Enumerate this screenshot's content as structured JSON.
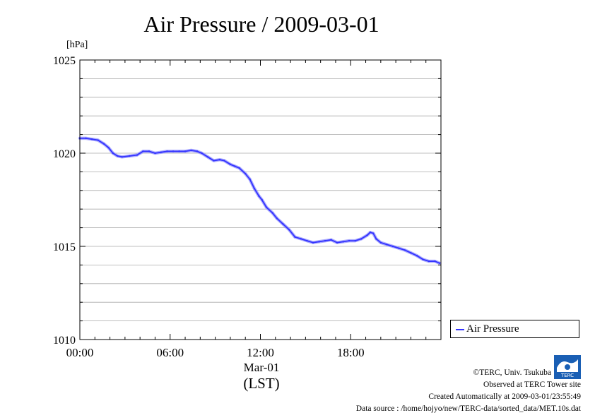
{
  "chart_data": {
    "type": "line",
    "title": "Air Pressure / 2009-03-01",
    "ylabel": "[hPa]",
    "xlabel": "Mar-01",
    "xlabel2": "(LST)",
    "ylim": [
      1010,
      1025
    ],
    "xlim": [
      0,
      24
    ],
    "yticks": [
      1010,
      1015,
      1020,
      1025
    ],
    "xticks": [
      0,
      6,
      12,
      18
    ],
    "xtick_labels": [
      "00:00",
      "06:00",
      "12:00",
      "18:00"
    ],
    "grid": true,
    "legend_position": "bottom-right",
    "series": [
      {
        "name": "Air Pressure",
        "color": "#3333ff",
        "x": [
          0.0,
          0.4,
          0.8,
          1.2,
          1.6,
          1.9,
          2.2,
          2.5,
          2.8,
          3.3,
          3.8,
          4.2,
          4.6,
          5.0,
          5.4,
          5.8,
          6.2,
          6.6,
          7.0,
          7.4,
          7.8,
          8.1,
          8.5,
          8.9,
          9.3,
          9.6,
          10.0,
          10.3,
          10.6,
          11.0,
          11.3,
          11.6,
          11.9,
          12.1,
          12.4,
          12.8,
          13.1,
          13.5,
          13.9,
          14.3,
          14.7,
          15.1,
          15.5,
          15.9,
          16.3,
          16.7,
          17.1,
          17.5,
          17.9,
          18.3,
          18.7,
          19.1,
          19.3,
          19.5,
          19.7,
          20.0,
          20.4,
          20.8,
          21.2,
          21.6,
          22.0,
          22.4,
          22.8,
          23.2,
          23.6,
          23.9
        ],
        "y": [
          1020.8,
          1020.8,
          1020.75,
          1020.7,
          1020.5,
          1020.3,
          1020.0,
          1019.85,
          1019.8,
          1019.85,
          1019.9,
          1020.1,
          1020.1,
          1020.0,
          1020.05,
          1020.1,
          1020.1,
          1020.1,
          1020.1,
          1020.15,
          1020.1,
          1020.0,
          1019.8,
          1019.6,
          1019.65,
          1019.6,
          1019.4,
          1019.3,
          1019.2,
          1018.9,
          1018.6,
          1018.1,
          1017.7,
          1017.5,
          1017.1,
          1016.8,
          1016.5,
          1016.2,
          1015.9,
          1015.5,
          1015.4,
          1015.3,
          1015.2,
          1015.25,
          1015.3,
          1015.35,
          1015.2,
          1015.25,
          1015.3,
          1015.3,
          1015.4,
          1015.6,
          1015.75,
          1015.7,
          1015.4,
          1015.2,
          1015.1,
          1015.0,
          1014.9,
          1014.8,
          1014.65,
          1014.5,
          1014.3,
          1014.2,
          1014.2,
          1014.1
        ]
      }
    ]
  },
  "footer": {
    "copyright": "©TERC, Univ. Tsukuba",
    "observed": "Observed at TERC Tower site",
    "created": "Created Automatically at 2009-03-01/23:55:49",
    "source": "Data source : /home/hojyo/new/TERC-data/sorted_data/MET.10s.dat",
    "logo_text": "TERC"
  }
}
